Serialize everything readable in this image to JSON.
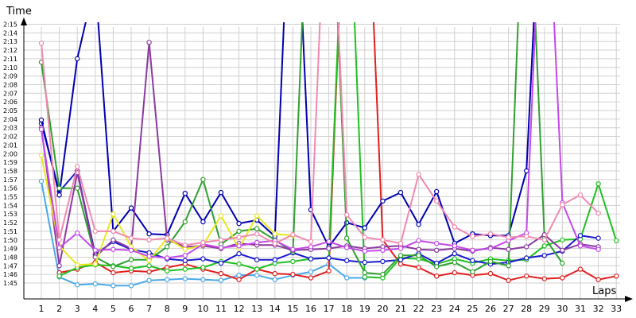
{
  "chart_data": {
    "type": "line",
    "title": "",
    "xlabel": "Laps",
    "ylabel": "Time",
    "x": [
      1,
      2,
      3,
      4,
      5,
      6,
      7,
      8,
      9,
      10,
      11,
      12,
      13,
      14,
      15,
      16,
      17,
      18,
      19,
      20,
      21,
      22,
      23,
      24,
      25,
      26,
      27,
      28,
      29,
      30,
      31,
      32,
      33
    ],
    "x_tick_labels": [
      "1",
      "2",
      "3",
      "4",
      "5",
      "6",
      "7",
      "8",
      "9",
      "10",
      "11",
      "12",
      "13",
      "14",
      "15",
      "16",
      "17",
      "18",
      "19",
      "20",
      "21",
      "22",
      "23",
      "24",
      "25",
      "26",
      "27",
      "28",
      "29",
      "30",
      "31",
      "32",
      "33"
    ],
    "y_unit": "seconds",
    "ylim": [
      104,
      138
    ],
    "y_ticks": [
      {
        "v": 105,
        "label": "1:45"
      },
      {
        "v": 106,
        "label": "1:46"
      },
      {
        "v": 107,
        "label": "1:47"
      },
      {
        "v": 108,
        "label": "1:48"
      },
      {
        "v": 109,
        "label": "1:49"
      },
      {
        "v": 110,
        "label": "1:50"
      },
      {
        "v": 111,
        "label": "1:51"
      },
      {
        "v": 112,
        "label": "1:52"
      },
      {
        "v": 113,
        "label": "1:53"
      },
      {
        "v": 114,
        "label": "1:54"
      },
      {
        "v": 115,
        "label": "1:55"
      },
      {
        "v": 116,
        "label": "1:56"
      },
      {
        "v": 117,
        "label": "1:57"
      },
      {
        "v": 118,
        "label": "1:58"
      },
      {
        "v": 119,
        "label": "1:59"
      },
      {
        "v": 120,
        "label": "2:00"
      },
      {
        "v": 121,
        "label": "2:01"
      },
      {
        "v": 122,
        "label": "2:02"
      },
      {
        "v": 123,
        "label": "2:03"
      },
      {
        "v": 124,
        "label": "2:04"
      },
      {
        "v": 125,
        "label": "2:05"
      },
      {
        "v": 126,
        "label": "2:06"
      },
      {
        "v": 127,
        "label": "2:07"
      },
      {
        "v": 128,
        "label": "2:08"
      },
      {
        "v": 129,
        "label": "2:09"
      },
      {
        "v": 130,
        "label": "2:10"
      },
      {
        "v": 131,
        "label": "2:11"
      },
      {
        "v": 132,
        "label": "2:12"
      },
      {
        "v": 133,
        "label": "2:13"
      },
      {
        "v": 134,
        "label": "2:14"
      },
      {
        "v": 135,
        "label": "2:15"
      }
    ],
    "grid": true,
    "legend": "none",
    "series": [
      {
        "color": "#4aa8e8",
        "values": [
          116.8,
          105.7,
          104.8,
          104.9,
          104.7,
          104.7,
          105.3,
          105.4,
          105.5,
          105.4,
          105.3,
          105.9,
          105.9,
          105.4,
          105.9,
          106.3,
          107.2,
          105.6,
          105.6,
          null,
          null,
          null,
          null,
          null,
          null,
          null,
          null,
          null,
          null,
          null,
          null,
          null,
          null
        ]
      },
      {
        "color": "#e02020",
        "values": [
          null,
          106.2,
          106.6,
          107.4,
          106.2,
          106.4,
          106.3,
          106.8,
          107.2,
          106.6,
          106.1,
          105.4,
          106.6,
          106.1,
          106.0,
          105.6,
          106.4,
          158.0,
          160.0,
          110.0,
          107.2,
          106.8,
          105.8,
          106.2,
          105.9,
          106.1,
          105.3,
          105.8,
          105.5,
          105.6,
          106.6,
          105.4,
          105.8
        ]
      },
      {
        "color": "#20c020",
        "values": [
          null,
          105.8,
          106.8,
          107.1,
          107.0,
          106.7,
          107.0,
          106.4,
          106.6,
          106.8,
          107.5,
          107.2,
          106.6,
          107.3,
          107.5,
          107.8,
          107.9,
          158.0,
          105.7,
          105.6,
          107.9,
          107.8,
          107.2,
          107.8,
          107.3,
          107.8,
          107.6,
          107.7,
          109.3,
          110.0,
          110.1,
          116.5,
          109.9
        ]
      },
      {
        "color": "#1a1acc",
        "values": [
          123.5,
          115.6,
          118.0,
          108.3,
          109.8,
          108.9,
          108.5,
          107.8,
          107.6,
          107.8,
          107.3,
          108.4,
          107.7,
          107.7,
          108.5,
          107.8,
          107.9,
          107.6,
          107.4,
          107.5,
          107.7,
          108.4,
          107.3,
          108.4,
          107.6,
          107.2,
          107.4,
          107.9,
          108.2,
          108.7,
          110.5,
          110.2,
          null
        ]
      },
      {
        "color": "#0000b0",
        "values": [
          123.9,
          115.2,
          131.0,
          140.0,
          111.0,
          113.7,
          110.7,
          110.6,
          115.4,
          112.1,
          115.5,
          111.9,
          112.3,
          110.4,
          160.0,
          113.5,
          109.2,
          112.0,
          111.4,
          114.5,
          115.5,
          111.8,
          115.6,
          109.6,
          110.7,
          110.5,
          110.5,
          118.0,
          160.0,
          null,
          null,
          null,
          null
        ]
      },
      {
        "color": "#30a030",
        "values": [
          130.6,
          116.0,
          116.0,
          108.0,
          106.9,
          107.7,
          107.7,
          109.2,
          112.1,
          117.0,
          109.5,
          111.0,
          111.3,
          110.0,
          108.6,
          160.0,
          160.0,
          110.2,
          106.2,
          106.0,
          108.2,
          108.2,
          106.9,
          107.4,
          106.3,
          107.5,
          107.0,
          160.0,
          110.3,
          107.3,
          null,
          null,
          null
        ]
      },
      {
        "color": "#8b3aa0",
        "values": [
          123.0,
          107.0,
          117.8,
          108.0,
          110.0,
          109.0,
          132.9,
          110.0,
          109.2,
          109.3,
          109.0,
          109.6,
          109.4,
          109.4,
          108.8,
          108.9,
          109.0,
          109.3,
          109.0,
          109.2,
          109.3,
          108.9,
          108.8,
          109.0,
          108.7,
          109.1,
          108.9,
          109.2,
          110.6,
          108.8,
          109.5,
          109.2,
          null
        ]
      },
      {
        "color": "#e8e820",
        "values": [
          119.8,
          109.3,
          107.1,
          107.2,
          113.0,
          109.2,
          107.6,
          110.2,
          108.9,
          109.4,
          112.8,
          109.0,
          112.8,
          110.7,
          110.5,
          null,
          null,
          null,
          null,
          null,
          null,
          null,
          null,
          null,
          null,
          null,
          null,
          null,
          null,
          null,
          null,
          null,
          null
        ]
      },
      {
        "color": "#c44ae8",
        "values": [
          122.8,
          109.1,
          110.8,
          108.8,
          108.9,
          108.8,
          108.1,
          107.9,
          108.2,
          109.5,
          109.1,
          109.3,
          109.7,
          109.9,
          108.9,
          109.2,
          109.8,
          109.1,
          108.7,
          108.8,
          109.0,
          109.9,
          109.6,
          109.3,
          108.8,
          109.0,
          109.9,
          110.8,
          160.0,
          114.3,
          109.3,
          108.9,
          null
        ]
      },
      {
        "color": "#f08ab0",
        "values": [
          132.8,
          110.0,
          118.5,
          111.0,
          111.0,
          110.2,
          110.0,
          110.2,
          109.4,
          109.7,
          110.0,
          110.3,
          110.7,
          109.6,
          110.6,
          109.8,
          160.0,
          112.9,
          110.3,
          110.0,
          109.6,
          117.6,
          114.5,
          111.5,
          110.4,
          110.7,
          110.3,
          110.4,
          110.0,
          114.1,
          115.2,
          113.1,
          null
        ]
      }
    ]
  }
}
